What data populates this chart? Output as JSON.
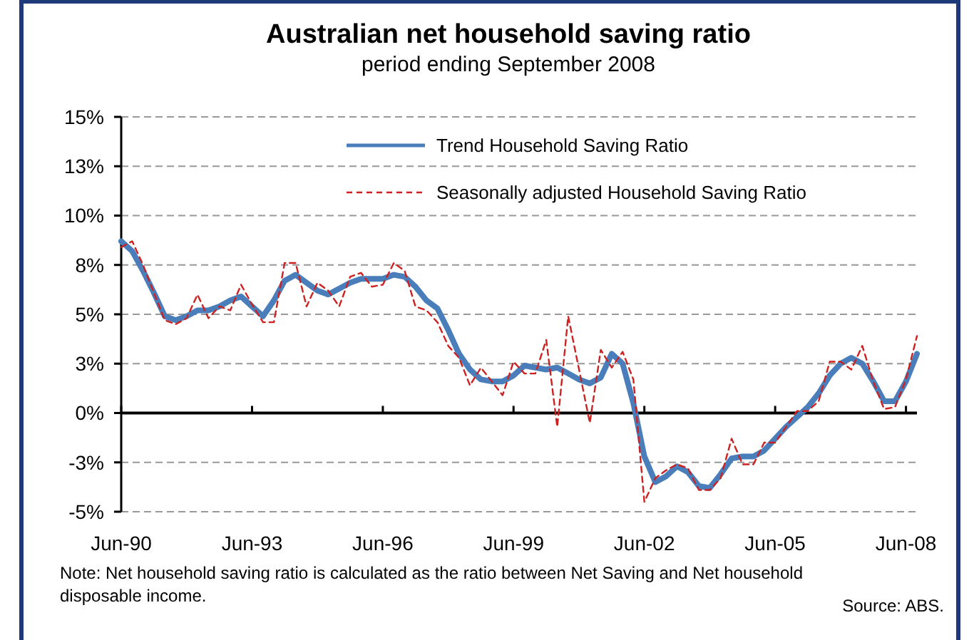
{
  "chart_data": {
    "type": "line",
    "title": "Australian net household saving ratio",
    "subtitle": "period ending September 2008",
    "x": [
      "1990-06",
      "1990-09",
      "1990-12",
      "1991-03",
      "1991-06",
      "1991-09",
      "1991-12",
      "1992-03",
      "1992-06",
      "1992-09",
      "1992-12",
      "1993-03",
      "1993-06",
      "1993-09",
      "1993-12",
      "1994-03",
      "1994-06",
      "1994-09",
      "1994-12",
      "1995-03",
      "1995-06",
      "1995-09",
      "1995-12",
      "1996-03",
      "1996-06",
      "1996-09",
      "1996-12",
      "1997-03",
      "1997-06",
      "1997-09",
      "1997-12",
      "1998-03",
      "1998-06",
      "1998-09",
      "1998-12",
      "1999-03",
      "1999-06",
      "1999-09",
      "1999-12",
      "2000-03",
      "2000-06",
      "2000-09",
      "2000-12",
      "2001-03",
      "2001-06",
      "2001-09",
      "2001-12",
      "2002-03",
      "2002-06",
      "2002-09",
      "2002-12",
      "2003-03",
      "2003-06",
      "2003-09",
      "2003-12",
      "2004-03",
      "2004-06",
      "2004-09",
      "2004-12",
      "2005-03",
      "2005-06",
      "2005-09",
      "2005-12",
      "2006-03",
      "2006-06",
      "2006-09",
      "2006-12",
      "2007-03",
      "2007-06",
      "2007-09",
      "2007-12",
      "2008-03",
      "2008-06",
      "2008-09"
    ],
    "series": [
      {
        "name": "Trend Household Saving Ratio",
        "color": "#4a7ebb",
        "line_style": "solid",
        "values": [
          8.7,
          8.2,
          7.2,
          6.1,
          4.9,
          4.7,
          4.9,
          5.2,
          5.2,
          5.4,
          5.7,
          5.9,
          5.4,
          4.9,
          5.7,
          6.7,
          7.0,
          6.6,
          6.2,
          6.0,
          6.3,
          6.6,
          6.8,
          6.8,
          6.8,
          7.0,
          6.9,
          6.4,
          5.7,
          5.3,
          4.2,
          3.0,
          2.2,
          1.7,
          1.6,
          1.6,
          1.9,
          2.4,
          2.3,
          2.2,
          2.3,
          2.0,
          1.7,
          1.5,
          1.8,
          3.0,
          2.5,
          0.5,
          -2.2,
          -3.5,
          -3.2,
          -2.7,
          -3.0,
          -3.7,
          -3.8,
          -3.1,
          -2.3,
          -2.2,
          -2.2,
          -1.9,
          -1.3,
          -0.7,
          -0.2,
          0.3,
          1.0,
          1.9,
          2.5,
          2.8,
          2.5,
          1.6,
          0.6,
          0.6,
          1.6,
          3.0
        ]
      },
      {
        "name": "Seasonally adjusted Household Saving Ratio",
        "color": "#cc2222",
        "line_style": "dashed",
        "values": [
          8.4,
          8.7,
          7.5,
          6.1,
          4.7,
          4.5,
          4.8,
          6.0,
          4.8,
          5.4,
          5.2,
          6.5,
          5.5,
          4.6,
          4.6,
          7.6,
          7.6,
          5.4,
          6.6,
          6.2,
          5.4,
          6.9,
          7.1,
          6.4,
          6.5,
          7.6,
          7.2,
          5.4,
          5.2,
          4.6,
          3.4,
          2.8,
          1.4,
          2.3,
          1.6,
          0.9,
          2.6,
          2.0,
          2.0,
          3.7,
          -0.7,
          4.9,
          2.2,
          -0.5,
          3.2,
          2.3,
          3.1,
          1.7,
          -4.5,
          -3.3,
          -2.9,
          -2.6,
          -2.8,
          -3.9,
          -3.9,
          -3.3,
          -1.3,
          -2.6,
          -2.6,
          -1.5,
          -1.5,
          -0.7,
          0.1,
          0.1,
          0.6,
          2.6,
          2.6,
          2.2,
          3.4,
          1.6,
          0.2,
          0.3,
          1.7,
          3.9
        ]
      }
    ],
    "xlim": [
      "1990-06",
      "2008-09"
    ],
    "xticks": [
      {
        "value": "1990-06",
        "label": "Jun-90"
      },
      {
        "value": "1993-06",
        "label": "Jun-93"
      },
      {
        "value": "1996-06",
        "label": "Jun-96"
      },
      {
        "value": "1999-06",
        "label": "Jun-99"
      },
      {
        "value": "2002-06",
        "label": "Jun-02"
      },
      {
        "value": "2005-06",
        "label": "Jun-05"
      },
      {
        "value": "2008-06",
        "label": "Jun-08"
      }
    ],
    "ylim": [
      -5,
      15
    ],
    "yticks": [
      {
        "value": 15,
        "label": "15%"
      },
      {
        "value": 12.5,
        "label": "13%"
      },
      {
        "value": 10,
        "label": "10%"
      },
      {
        "value": 7.5,
        "label": "8%"
      },
      {
        "value": 5,
        "label": "5%"
      },
      {
        "value": 2.5,
        "label": "3%"
      },
      {
        "value": 0,
        "label": "0%"
      },
      {
        "value": -2.5,
        "label": "-3%"
      },
      {
        "value": -5,
        "label": "-5%"
      }
    ],
    "grid": "y",
    "legend": "top right",
    "annotations": [
      "Note:  Net household saving ratio is calculated as the ratio between Net Saving and Net household disposable income.",
      "Source:  ABS."
    ]
  }
}
